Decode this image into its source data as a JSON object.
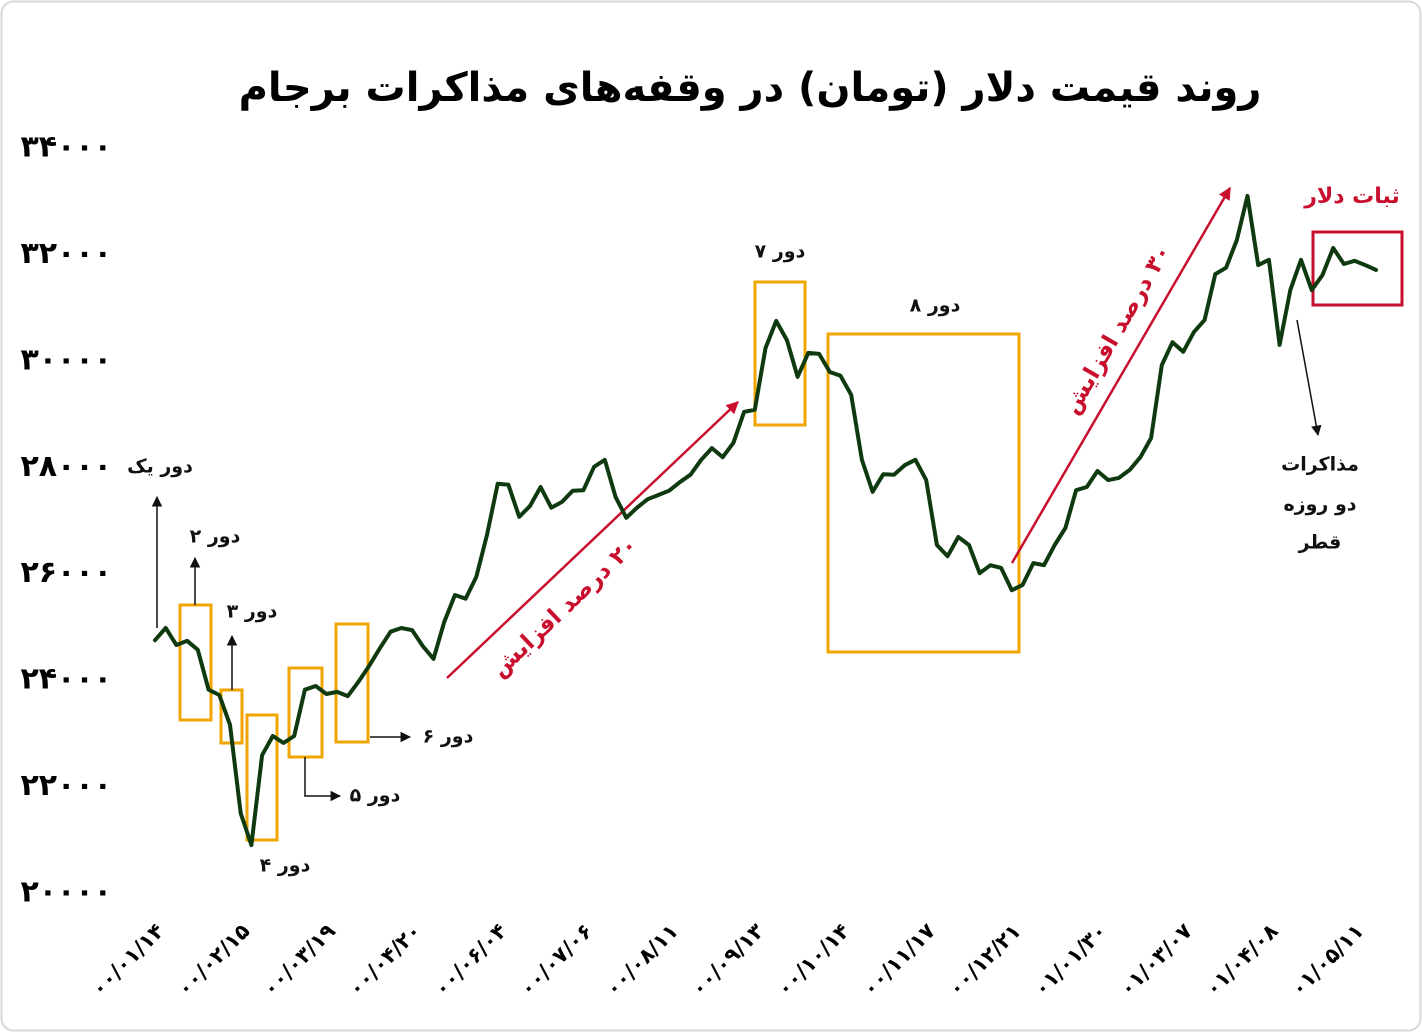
{
  "chart_data": {
    "type": "line",
    "title": "روند قیمت دلار (تومان) در وقفه‌های مذاکرات برجام",
    "categories": [
      "۰۰/۰۱/۱۴",
      null,
      null,
      null,
      null,
      null,
      null,
      null,
      "۰۰/۰۲/۱۵",
      null,
      null,
      null,
      null,
      null,
      null,
      null,
      "۰۰/۰۳/۱۹",
      null,
      null,
      null,
      null,
      null,
      null,
      null,
      "۰۰/۰۴/۲۰",
      null,
      null,
      null,
      null,
      null,
      null,
      null,
      "۰۰/۰۶/۰۴",
      null,
      null,
      null,
      null,
      null,
      null,
      null,
      "۰۰/۰۷/۰۶",
      null,
      null,
      null,
      null,
      null,
      null,
      null,
      "۰۰/۰۸/۱۱",
      null,
      null,
      null,
      null,
      null,
      null,
      null,
      "۰۰/۰۹/۱۳",
      null,
      null,
      null,
      null,
      null,
      null,
      null,
      "۰۰/۱۰/۱۴",
      null,
      null,
      null,
      null,
      null,
      null,
      null,
      "۰۰/۱۱/۱۷",
      null,
      null,
      null,
      null,
      null,
      null,
      null,
      "۰۰/۱۲/۲۱",
      null,
      null,
      null,
      null,
      null,
      null,
      null,
      "۰۱/۰۱/۳۰",
      null,
      null,
      null,
      null,
      null,
      null,
      null,
      "۰۱/۰۳/۰۷",
      null,
      null,
      null,
      null,
      null,
      null,
      null,
      "۰۱/۰۴/۰۸",
      null,
      null,
      null,
      null,
      null,
      null,
      null,
      "۰۱/۰۵/۱۱",
      null,
      null
    ],
    "values": [
      24750,
      24980,
      24660,
      24740,
      24570,
      23820,
      23720,
      23160,
      21500,
      20900,
      22590,
      22950,
      22820,
      22950,
      23820,
      23890,
      23740,
      23780,
      23700,
      23970,
      24270,
      24600,
      24910,
      24980,
      24940,
      24640,
      24400,
      25090,
      25600,
      25530,
      25940,
      26730,
      27690,
      27670,
      27070,
      27270,
      27630,
      27240,
      27350,
      27560,
      27570,
      28010,
      28140,
      27440,
      27050,
      27240,
      27400,
      27480,
      27560,
      27720,
      27860,
      28140,
      28360,
      28190,
      28460,
      29040,
      29080,
      30240,
      30750,
      30390,
      29700,
      30150,
      30130,
      29790,
      29720,
      29360,
      28140,
      27540,
      27870,
      27860,
      28040,
      28140,
      27760,
      26540,
      26330,
      26690,
      26540,
      26010,
      26160,
      26110,
      25690,
      25790,
      26200,
      26160,
      26540,
      26860,
      27570,
      27630,
      27930,
      27760,
      27800,
      27950,
      28190,
      28550,
      29920,
      30350,
      30170,
      30540,
      30770,
      31630,
      31750,
      32270,
      33100,
      31800,
      31900,
      30300,
      31330,
      31900,
      31330,
      31610,
      32120,
      31820,
      31880,
      31800,
      31710
    ],
    "color": "#0f3a0f",
    "ylim": [
      20000,
      34000
    ],
    "yticks": [
      {
        "value": 20000,
        "label": "۲۰۰۰۰"
      },
      {
        "value": 22000,
        "label": "۲۲۰۰۰"
      },
      {
        "value": 24000,
        "label": "۲۴۰۰۰"
      },
      {
        "value": 26000,
        "label": "۲۶۰۰۰"
      },
      {
        "value": 28000,
        "label": "۲۸۰۰۰"
      },
      {
        "value": 30000,
        "label": "۳۰۰۰۰"
      },
      {
        "value": 32000,
        "label": "۳۲۰۰۰"
      },
      {
        "value": 34000,
        "label": "۳۴۰۰۰"
      }
    ],
    "grid": false,
    "annotations": {
      "round1": "دور یک",
      "round2": "دور ۲",
      "round3": "دور ۳",
      "round4": "دور ۴",
      "round5": "دور ۵",
      "round6": "دور ۶",
      "round7": "دور ۷",
      "round8": "دور ۸",
      "rise20": "۲۰ درصد افزایش",
      "rise30": "۳۰ درصد افزایش",
      "stable": "ثبات دلار",
      "qatar": [
        "مذاکرات",
        "دو روزه",
        "قطر"
      ]
    }
  }
}
